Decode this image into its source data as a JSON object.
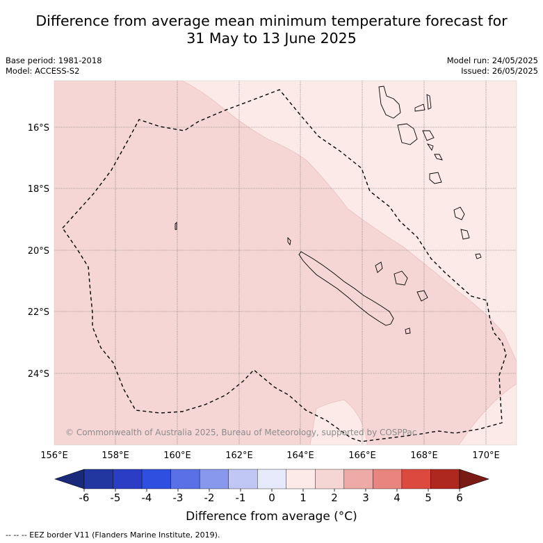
{
  "title": {
    "line1": "Difference from average mean minimum temperature forecast for",
    "line2": "31 May to 13 June 2025"
  },
  "meta_left": {
    "base_period": "Base period: 1981-2018",
    "model": "Model: ACCESS-S2"
  },
  "meta_right": {
    "model_run": "Model run: 24/05/2025",
    "issued": "Issued: 26/05/2025"
  },
  "map": {
    "lon_ticks": [
      "156°E",
      "158°E",
      "160°E",
      "162°E",
      "164°E",
      "166°E",
      "168°E",
      "170°E"
    ],
    "lat_ticks": [
      "16°S",
      "18°S",
      "20°S",
      "22°S",
      "24°S"
    ],
    "copyright": "© Commonwealth of Australia 2025, Bureau of Meteorology, supported by COSPPac",
    "shading": [
      {
        "range": "1 to 2",
        "color": "#f5d6d4"
      },
      {
        "range": "0 to 1",
        "color": "#fbeae8"
      }
    ]
  },
  "colorbar": {
    "ticks": [
      "-6",
      "-5",
      "-4",
      "-3",
      "-2",
      "-1",
      "0",
      "1",
      "2",
      "3",
      "4",
      "5",
      "6"
    ],
    "colors": [
      "#22379f",
      "#2a3dc4",
      "#2f4fe0",
      "#5a70e6",
      "#8898ec",
      "#c0c7f4",
      "#e7eafa",
      "#fbeae8",
      "#f5d6d4",
      "#eeaaa6",
      "#e8857e",
      "#dc4a3f",
      "#ae2820"
    ],
    "under_color": "#1a2a7a",
    "over_color": "#7a1a14",
    "label": "Difference from average (°C)"
  },
  "footnote": "-- -- -- EEZ border V11 (Flanders Marine Institute, 2019)."
}
